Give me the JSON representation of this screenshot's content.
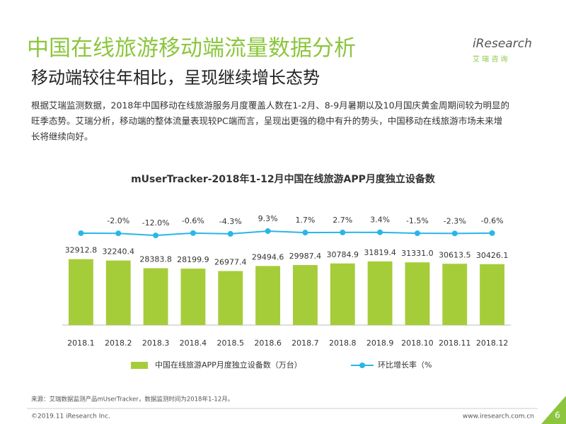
{
  "header": {
    "title": "中国在线旅游移动端流量数据分析",
    "subtitle": "移动端较往年相比，呈现继续增长态势",
    "logo": "iResearch",
    "logo_cn": "艾 瑞 咨 询"
  },
  "paragraph": [
    "根据艾瑞监测数据，2018年中国移动在线旅游服务月度覆盖人数在1-2月、8-9月暑期以及10月国庆黄金周期间较为明显的",
    "旺季态势。艾瑞分析，移动端的整体流量表现较PC端而言，呈现出更强的稳中有升的势头，中国移动在线旅游市场未来增",
    "长将继续向好。"
  ],
  "chart_data": {
    "type": "bar",
    "title": "mUserTracker-2018年1-12月中国在线旅游APP月度独立设备数",
    "categories": [
      "2018.1",
      "2018.2",
      "2018.3",
      "2018.4",
      "2018.5",
      "2018.6",
      "2018.7",
      "2018.8",
      "2018.9",
      "2018.10",
      "2018.11",
      "2018.12"
    ],
    "series": [
      {
        "name": "中国在线旅游APP月度独立设备数（万台）",
        "type": "bar",
        "color": "#a5cd39",
        "values": [
          32912.8,
          32240.4,
          28383.8,
          28199.9,
          26977.4,
          29494.6,
          29987.4,
          30784.9,
          31819.4,
          31331.0,
          30613.5,
          30426.1
        ],
        "value_labels": [
          "32912.8",
          "32240.4",
          "28383.8",
          "28199.9",
          "26977.4",
          "29494.6",
          "29987.4",
          "30784.9",
          "31819.4",
          "31331.0",
          "30613.5",
          "30426.1"
        ]
      },
      {
        "name": "环比增长率（%",
        "type": "line",
        "axis": "y2",
        "color": "#29b6e8",
        "values": [
          -1.0,
          -2.0,
          -12.0,
          -0.6,
          -4.3,
          9.3,
          1.7,
          2.7,
          3.4,
          -1.5,
          -2.3,
          -0.6
        ],
        "value_labels": [
          null,
          "-2.0%",
          "-12.0%",
          "-0.6%",
          "-4.3%",
          "9.3%",
          "1.7%",
          "2.7%",
          "3.4%",
          "-1.5%",
          "-2.3%",
          "-0.6%"
        ]
      }
    ],
    "ylim": [
      0,
      60000
    ],
    "y2lim": [
      -460,
      140
    ]
  },
  "footer": {
    "source": "来源：艾瑞数据监测产品mUserTracker，数据监测时间为2018年1-12月。",
    "copyright": "©2019.11 iResearch Inc.",
    "website": "www.iresearch.com.cn",
    "page": "6"
  }
}
